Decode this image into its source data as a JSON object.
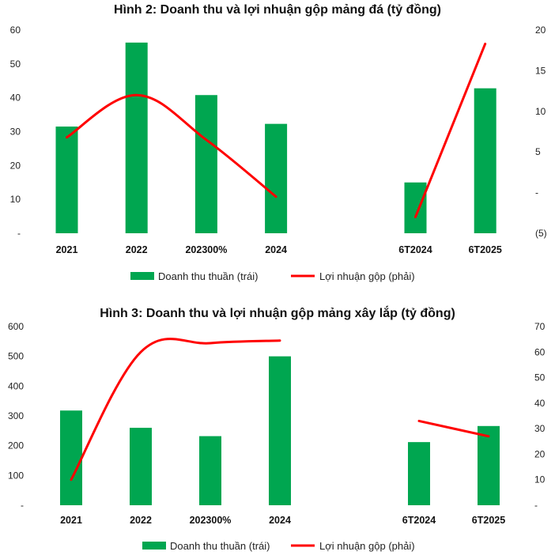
{
  "chart_data": [
    {
      "type": "bar",
      "title": "Hình 2: Doanh thu và lợi nhuận gộp mảng đá (tỷ đồng)",
      "categories": [
        "2021",
        "2022",
        "202300%",
        "2024",
        "",
        "6T2024",
        "6T2025"
      ],
      "left_ticks": [
        "60",
        "50",
        "40",
        "30",
        "20",
        "10",
        "-"
      ],
      "right_ticks": [
        "20",
        "15",
        "10",
        "5",
        "-",
        "(5)"
      ],
      "ylim_left": [
        0,
        60
      ],
      "ylim_right": [
        -5,
        20
      ],
      "series": [
        {
          "name": "Doanh thu thuần (trái)",
          "type": "bar",
          "axis": "left",
          "color": "#00a650",
          "values": [
            31.5,
            56.3,
            40.8,
            32.3,
            null,
            15,
            42.8
          ]
        },
        {
          "name": "Lợi nhuận gộp (phải)",
          "type": "line",
          "axis": "right",
          "color": "#ff0000",
          "values": [
            6.8,
            12,
            6.5,
            -0.5,
            null,
            -3,
            18.3
          ]
        }
      ],
      "legend": "bottom"
    },
    {
      "type": "bar",
      "title": "Hình 3: Doanh thu và lợi nhuận gộp mảng xây lắp (tỷ đồng)",
      "categories": [
        "2021",
        "2022",
        "202300%",
        "2024",
        "",
        "6T2024",
        "6T2025"
      ],
      "left_ticks": [
        "600",
        "500",
        "400",
        "300",
        "200",
        "100",
        "-"
      ],
      "right_ticks": [
        "70",
        "60",
        "50",
        "40",
        "30",
        "20",
        "10",
        "-"
      ],
      "ylim_left": [
        0,
        600
      ],
      "ylim_right": [
        0,
        70
      ],
      "series": [
        {
          "name": "Doanh thu thuần (trái)",
          "type": "bar",
          "axis": "left",
          "color": "#00a650",
          "values": [
            318,
            260,
            232,
            500,
            null,
            212,
            266
          ]
        },
        {
          "name": "Lợi nhuận gộp (phải)",
          "type": "line",
          "axis": "right",
          "color": "#ff0000",
          "values": [
            10,
            60,
            63.5,
            64.5,
            null,
            33,
            27
          ]
        }
      ],
      "legend": "bottom"
    }
  ]
}
